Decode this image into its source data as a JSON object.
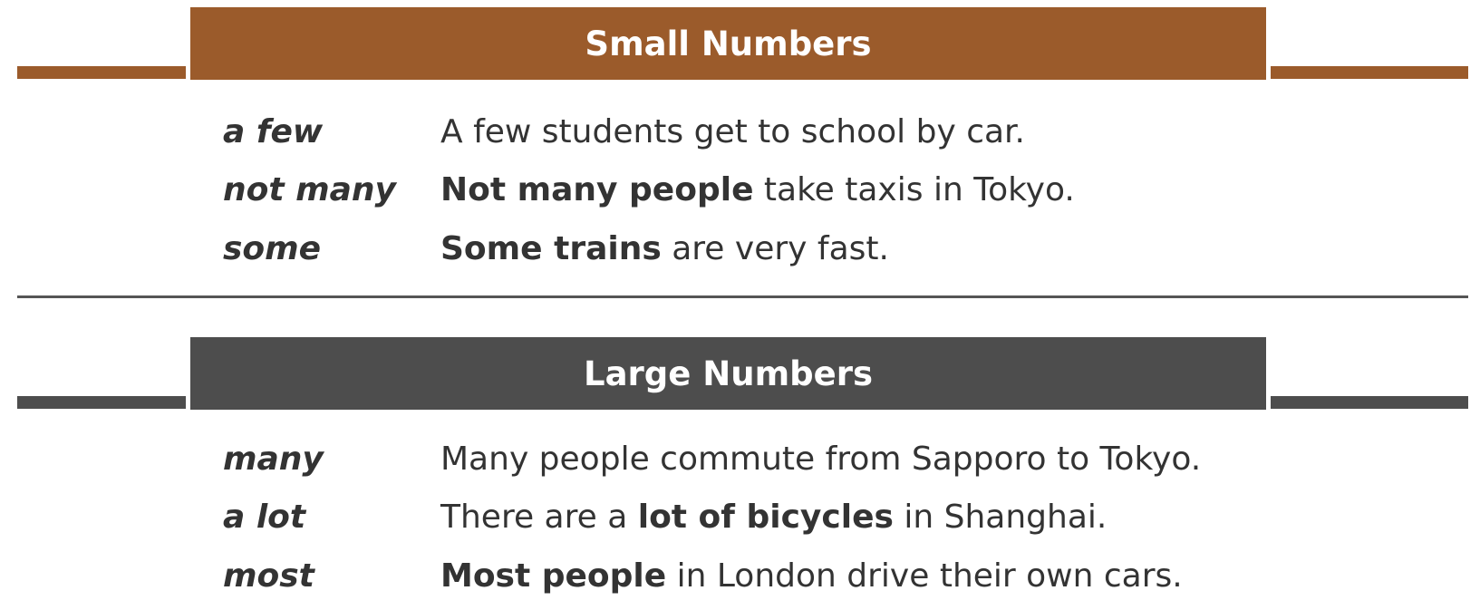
{
  "colors": {
    "small_accent": "#9b5b2b",
    "large_accent": "#4d4d4d",
    "text": "#333333",
    "divider": "#555555"
  },
  "sections": [
    {
      "title": "Small Numbers",
      "rows": [
        {
          "term": "a few",
          "s1": "",
          "s2": "A few students get to school by car.",
          "s3": ""
        },
        {
          "term": "not many",
          "s1": "",
          "s2": "Not many people",
          "s3": " take taxis in Tokyo."
        },
        {
          "term": "some",
          "s1": "",
          "s2": "Some trains",
          "s3": " are very fast."
        }
      ]
    },
    {
      "title": "Large Numbers",
      "rows": [
        {
          "term": "many",
          "s1": "",
          "s2": "Many people commute from Sapporo to Tokyo.",
          "s3": ""
        },
        {
          "term": "a lot",
          "s1": "There are a ",
          "s2": "lot of bicycles",
          "s3": " in Shanghai."
        },
        {
          "term": "most",
          "s1": "",
          "s2": "Most people",
          "s3": " in London drive their own cars."
        }
      ]
    }
  ]
}
